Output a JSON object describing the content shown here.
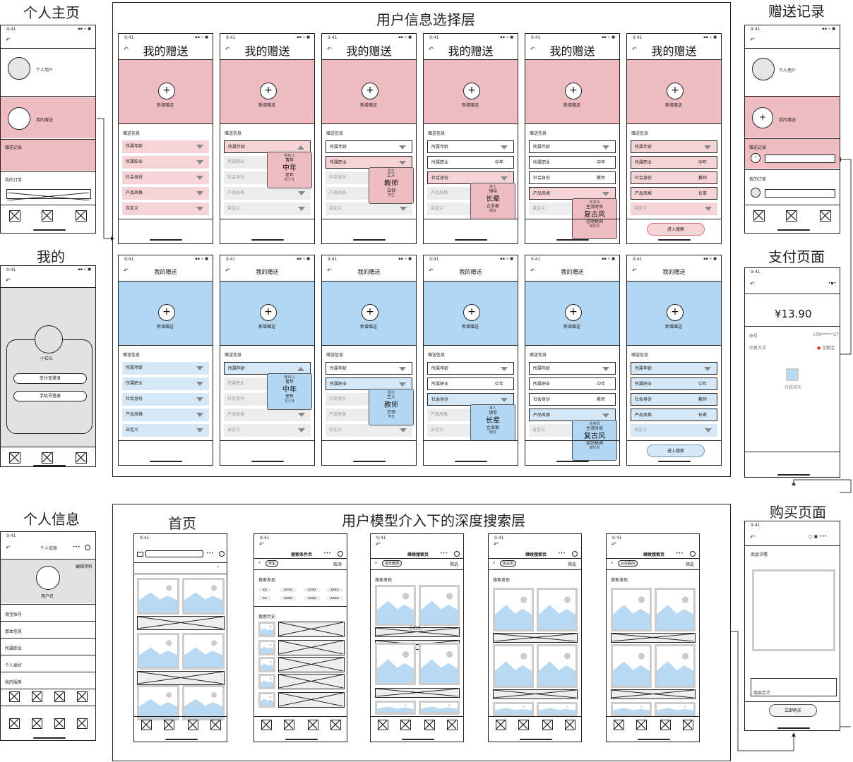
{
  "titles": {
    "personal_home": "个人主页",
    "mine": "我的",
    "personal_info": "个人信息",
    "selection_layer": "用户信息选择层",
    "gift_record": "赠送记录",
    "payment": "支付页面",
    "purchase": "购买页面",
    "home": "首页",
    "deep_search": "用户模型介入下的深度搜索层"
  },
  "common": {
    "time": "9:41",
    "back": "↶",
    "signal": "▪▪ ≈ ■",
    "my_gift": "我的赠送",
    "new_gift": "新增赠送",
    "gift_info": "赠送信息",
    "enter_search": "进入搜索"
  },
  "fields": {
    "age": "所属年龄",
    "job": "所属职业",
    "identity": "社会身份",
    "style": "产品风格",
    "custom": "自定义"
  },
  "values": {
    "middle_age": "中年",
    "teacher": "教师",
    "elder": "长辈",
    "retro": "复古风"
  },
  "popups": {
    "age": {
      "top": "婴幼儿",
      "mid1": "青年",
      "big": "中年",
      "mid2": "老年",
      "bottom": "青少年"
    },
    "job": {
      "top": "医生",
      "mid1": "工人",
      "big": "教师",
      "mid2": "白领",
      "bottom": "学生"
    },
    "identity": {
      "top": "家人",
      "mid1": "领导",
      "big": "长辈",
      "mid2": "企业家",
      "bottom": "朋友"
    },
    "style": {
      "top": "未来风",
      "mid1": "主流时尚",
      "big": "复古风",
      "mid2": "运动休闲",
      "bottom": "简约风"
    }
  },
  "home_phone": {
    "personal_user": "个人用户",
    "my_gift": "我的赠送",
    "gift_record": "赠送记录",
    "my_orders": "我的订单"
  },
  "mine_phone": {
    "username": "小石头",
    "alipay_login": "支付宝登录",
    "phone_login": "手机号登录"
  },
  "info_phone": {
    "header": "个人信息",
    "edit": "编辑资料",
    "username": "用户名",
    "items": [
      "淘宝账号",
      "基本信息",
      "所属职业",
      "个人爱好",
      "我的服务"
    ]
  },
  "pay_phone": {
    "amount": "¥13.90",
    "account_label": "账号",
    "account_value": "178******27",
    "method_label": "交易方式",
    "method_value": "余额宝",
    "success": "付款成功"
  },
  "buy_phone": {
    "details": "商品详情",
    "total": "商品合计",
    "confirm": "立即购买"
  },
  "search_phones": {
    "condition_page": "搜索条件页",
    "continue_page": "继续搜索页",
    "cancel": "取消",
    "filter": "筛选",
    "discover": "搜索发现",
    "history": "搜索历史",
    "tag1": "学生",
    "tag2": "青年教师",
    "tag3": "复古风",
    "tag4": "以往看内",
    "xx": "xx",
    "xxxx": "xxxx",
    "xiaoshitou": "小石头"
  },
  "colors": {
    "pink": "#efbcc1",
    "pink_light": "#f5d3d6",
    "blue": "#b3d7f3",
    "blue_light": "#d4e8f7",
    "gray": "#e2e2e2",
    "img_blue": "#b9d9f2"
  }
}
